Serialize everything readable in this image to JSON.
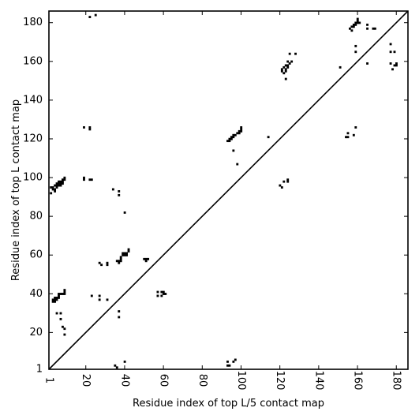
{
  "chart_data": {
    "type": "scatter",
    "title": "",
    "xlabel": "Residue index of top L/5 contact map",
    "ylabel": "Residue index of top L contact map",
    "xlim": [
      1,
      186
    ],
    "ylim": [
      1,
      186
    ],
    "x_ticks": [
      1,
      20,
      40,
      60,
      80,
      100,
      120,
      140,
      160,
      180
    ],
    "y_ticks": [
      1,
      20,
      40,
      60,
      80,
      100,
      120,
      140,
      160,
      180
    ],
    "diagonal": true,
    "grid": false,
    "marker_color": "#000000",
    "upper_triangle_points": [
      [
        2,
        95
      ],
      [
        3,
        94
      ],
      [
        3,
        95
      ],
      [
        4,
        93
      ],
      [
        4,
        94
      ],
      [
        4,
        96
      ],
      [
        5,
        95
      ],
      [
        5,
        96
      ],
      [
        5,
        97
      ],
      [
        6,
        96
      ],
      [
        6,
        97
      ],
      [
        6,
        98
      ],
      [
        7,
        96
      ],
      [
        7,
        97
      ],
      [
        7,
        98
      ],
      [
        8,
        97
      ],
      [
        8,
        98
      ],
      [
        8,
        99
      ],
      [
        9,
        99
      ],
      [
        9,
        100
      ],
      [
        2,
        92
      ],
      [
        19,
        126
      ],
      [
        19,
        100
      ],
      [
        19,
        99
      ],
      [
        22,
        126
      ],
      [
        22,
        125
      ],
      [
        22,
        99
      ],
      [
        23,
        99
      ],
      [
        22,
        183
      ],
      [
        25,
        184
      ],
      [
        37,
        93
      ],
      [
        37,
        91
      ],
      [
        34,
        94
      ],
      [
        40,
        82
      ],
      [
        93,
        119
      ],
      [
        94,
        119
      ],
      [
        94,
        120
      ],
      [
        95,
        120
      ],
      [
        95,
        121
      ],
      [
        96,
        121
      ],
      [
        96,
        122
      ],
      [
        97,
        122
      ],
      [
        98,
        123
      ],
      [
        99,
        123
      ],
      [
        99,
        124
      ],
      [
        100,
        124
      ],
      [
        100,
        125
      ],
      [
        100,
        126
      ],
      [
        96,
        114
      ],
      [
        98,
        107
      ],
      [
        114,
        121
      ],
      [
        120,
        96
      ],
      [
        121,
        95
      ],
      [
        122,
        98
      ],
      [
        124,
        98
      ],
      [
        124,
        99
      ],
      [
        121,
        155
      ],
      [
        121,
        156
      ],
      [
        122,
        154
      ],
      [
        122,
        157
      ],
      [
        123,
        155
      ],
      [
        123,
        156
      ],
      [
        123,
        158
      ],
      [
        124,
        157
      ],
      [
        124,
        158
      ],
      [
        125,
        159
      ],
      [
        126,
        160
      ],
      [
        124,
        160
      ],
      [
        123,
        151
      ],
      [
        125,
        164
      ],
      [
        128,
        164
      ],
      [
        151,
        157
      ],
      [
        154,
        121
      ],
      [
        155,
        121
      ],
      [
        155,
        123
      ],
      [
        158,
        122
      ],
      [
        159,
        126
      ],
      [
        156,
        177
      ],
      [
        157,
        176
      ],
      [
        157,
        178
      ],
      [
        158,
        178
      ],
      [
        158,
        179
      ],
      [
        159,
        180
      ],
      [
        159,
        179
      ],
      [
        160,
        180
      ],
      [
        160,
        181
      ],
      [
        160,
        182
      ],
      [
        161,
        180
      ],
      [
        165,
        177
      ],
      [
        165,
        179
      ],
      [
        168,
        177
      ],
      [
        169,
        177
      ],
      [
        159,
        168
      ],
      [
        159,
        165
      ],
      [
        165,
        159
      ],
      [
        177,
        169
      ],
      [
        177,
        165
      ],
      [
        179,
        165
      ],
      [
        177,
        159
      ],
      [
        178,
        156
      ],
      [
        179,
        158
      ],
      [
        180,
        158
      ],
      [
        180,
        159
      ]
    ],
    "lower_triangle_points": [
      [
        3,
        36
      ],
      [
        3,
        37
      ],
      [
        4,
        36
      ],
      [
        4,
        37
      ],
      [
        4,
        38
      ],
      [
        5,
        37
      ],
      [
        5,
        38
      ],
      [
        6,
        38
      ],
      [
        6,
        39
      ],
      [
        6,
        40
      ],
      [
        7,
        40
      ],
      [
        8,
        40
      ],
      [
        9,
        40
      ],
      [
        9,
        41
      ],
      [
        9,
        42
      ],
      [
        5,
        30
      ],
      [
        7,
        30
      ],
      [
        7,
        27
      ],
      [
        8,
        23
      ],
      [
        9,
        22
      ],
      [
        9,
        19
      ],
      [
        23,
        39
      ],
      [
        27,
        39
      ],
      [
        27,
        37
      ],
      [
        31,
        37
      ],
      [
        27,
        56
      ],
      [
        28,
        55
      ],
      [
        31,
        55
      ],
      [
        31,
        56
      ],
      [
        36,
        57
      ],
      [
        37,
        56
      ],
      [
        37,
        57
      ],
      [
        38,
        57
      ],
      [
        38,
        58
      ],
      [
        38,
        59
      ],
      [
        39,
        60
      ],
      [
        39,
        61
      ],
      [
        40,
        60
      ],
      [
        40,
        61
      ],
      [
        41,
        60
      ],
      [
        41,
        61
      ],
      [
        42,
        62
      ],
      [
        42,
        63
      ],
      [
        37,
        31
      ],
      [
        37,
        28
      ],
      [
        50,
        58
      ],
      [
        51,
        57
      ],
      [
        51,
        58
      ],
      [
        52,
        58
      ],
      [
        57,
        39
      ],
      [
        57,
        41
      ],
      [
        59,
        41
      ],
      [
        59,
        39
      ],
      [
        60,
        40
      ],
      [
        60,
        41
      ],
      [
        61,
        40
      ],
      [
        35,
        3
      ],
      [
        36,
        2
      ],
      [
        40,
        5
      ],
      [
        93,
        5
      ],
      [
        93,
        3
      ],
      [
        94,
        3
      ],
      [
        96,
        5
      ],
      [
        97,
        6
      ]
    ]
  }
}
